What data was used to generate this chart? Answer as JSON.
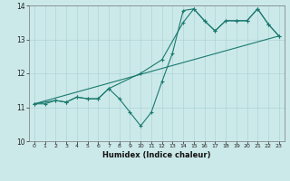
{
  "xlabel": "Humidex (Indice chaleur)",
  "xlim": [
    -0.5,
    23.5
  ],
  "ylim": [
    10,
    14
  ],
  "xticks": [
    0,
    1,
    2,
    3,
    4,
    5,
    6,
    7,
    8,
    9,
    10,
    11,
    12,
    13,
    14,
    15,
    16,
    17,
    18,
    19,
    20,
    21,
    22,
    23
  ],
  "yticks": [
    10,
    11,
    12,
    13,
    14
  ],
  "bg_color": "#cce9ea",
  "grid_color": "#aed4d6",
  "line_color": "#1a7a6e",
  "line1_x": [
    0,
    1,
    2,
    3,
    4,
    5,
    6,
    7,
    8,
    9,
    10,
    11,
    12,
    13,
    14,
    15,
    16,
    17,
    18,
    19,
    20,
    21,
    22,
    23
  ],
  "line1_y": [
    11.1,
    11.1,
    11.2,
    11.15,
    11.3,
    11.25,
    11.25,
    11.55,
    11.25,
    10.85,
    10.45,
    10.85,
    11.75,
    12.6,
    13.85,
    13.9,
    13.55,
    13.25,
    13.55,
    13.55,
    13.55,
    13.9,
    13.45,
    13.1
  ],
  "line2_x": [
    0,
    2,
    3,
    4,
    5,
    6,
    7,
    10,
    12,
    14,
    15,
    16,
    17,
    18,
    19,
    20,
    21,
    22,
    23
  ],
  "line2_y": [
    11.1,
    11.2,
    11.15,
    11.3,
    11.25,
    11.25,
    11.55,
    12.0,
    12.4,
    13.5,
    13.9,
    13.55,
    13.25,
    13.55,
    13.55,
    13.55,
    13.9,
    13.45,
    13.1
  ],
  "line3_x": [
    0,
    23
  ],
  "line3_y": [
    11.1,
    13.1
  ]
}
